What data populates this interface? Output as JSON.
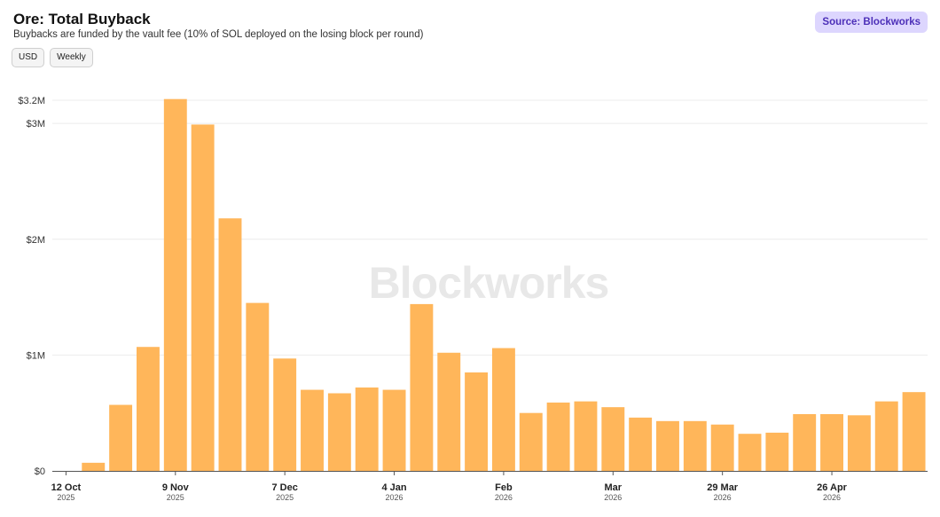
{
  "header": {
    "title": "Ore: Total Buyback",
    "subtitle": "Buybacks are funded by the vault fee (10% of SOL deployed on the losing block per round)",
    "source_label": "Source: Blockworks"
  },
  "controls": {
    "currency_label": "USD",
    "interval_label": "Weekly"
  },
  "watermark": "Blockworks",
  "colors": {
    "bar": "#ffb65a",
    "grid": "#ececec",
    "axis": "#555555",
    "source_bg": "#ddd6fe",
    "source_text": "#4c2fb8"
  },
  "chart_data": {
    "type": "bar",
    "title": "Ore: Total Buyback",
    "subtitle": "Buybacks are funded by the vault fee (10% of SOL deployed on the losing block per round)",
    "xlabel": "",
    "ylabel": "",
    "ylim": [
      0,
      3200000
    ],
    "yticks": [
      {
        "value": 0,
        "label": "$0"
      },
      {
        "value": 1000000,
        "label": "$1M"
      },
      {
        "value": 2000000,
        "label": "$2M"
      },
      {
        "value": 3000000,
        "label": "$3M"
      },
      {
        "value": 3200000,
        "label": "$3.2M"
      }
    ],
    "categories": [
      "2025-10-12",
      "2025-10-19",
      "2025-10-26",
      "2025-11-02",
      "2025-11-09",
      "2025-11-16",
      "2025-11-23",
      "2025-11-30",
      "2025-12-07",
      "2025-12-14",
      "2025-12-21",
      "2025-12-28",
      "2026-01-04",
      "2026-01-11",
      "2026-01-18",
      "2026-01-25",
      "2026-02-01",
      "2026-02-08",
      "2026-02-15",
      "2026-02-22",
      "2026-03-01",
      "2026-03-08",
      "2026-03-15",
      "2026-03-22",
      "2026-03-29",
      "2026-04-05",
      "2026-04-12",
      "2026-04-19",
      "2026-04-26",
      "2026-05-03",
      "2026-05-10",
      "2026-05-17"
    ],
    "values": [
      0,
      70000,
      570000,
      1070000,
      3210000,
      2990000,
      2180000,
      1450000,
      970000,
      700000,
      670000,
      720000,
      700000,
      1440000,
      1020000,
      850000,
      1060000,
      500000,
      590000,
      600000,
      550000,
      460000,
      430000,
      430000,
      400000,
      320000,
      330000,
      490000,
      490000,
      480000,
      600000,
      680000
    ],
    "xticks": [
      {
        "index": 0,
        "label": "12 Oct",
        "year": "2025"
      },
      {
        "index": 4,
        "label": "9 Nov",
        "year": "2025"
      },
      {
        "index": 8,
        "label": "7 Dec",
        "year": "2025"
      },
      {
        "index": 12,
        "label": "4 Jan",
        "year": "2026"
      },
      {
        "index": 16,
        "label": "Feb",
        "year": "2026"
      },
      {
        "index": 20,
        "label": "Mar",
        "year": "2026"
      },
      {
        "index": 24,
        "label": "29 Mar",
        "year": "2026"
      },
      {
        "index": 28,
        "label": "26 Apr",
        "year": "2026"
      }
    ],
    "grid": true,
    "legend": "none"
  }
}
